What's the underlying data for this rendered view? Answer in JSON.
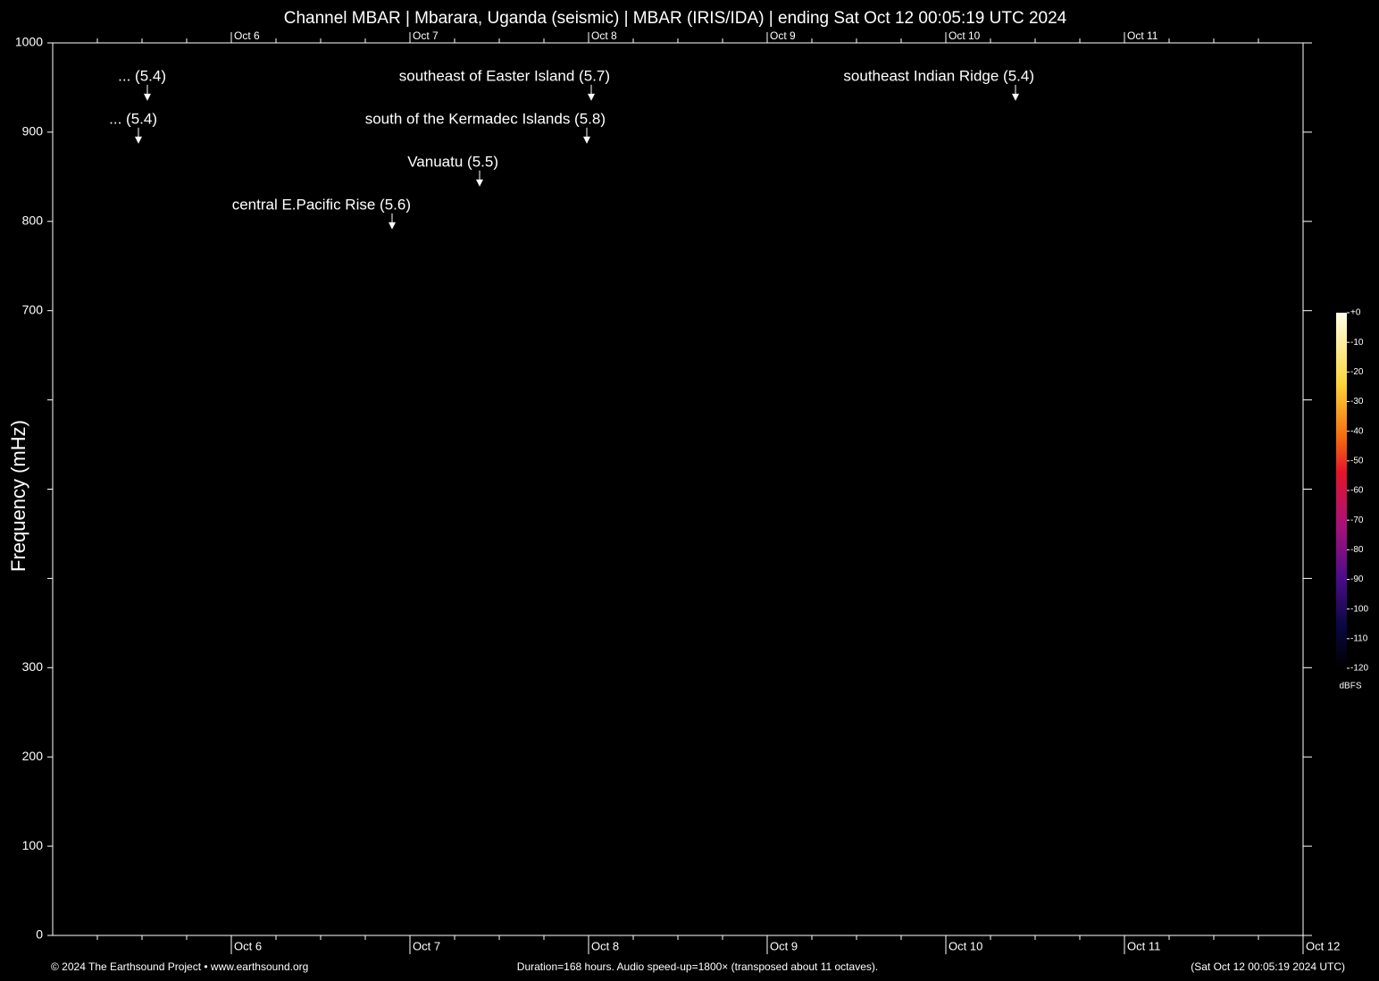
{
  "chart_data": {
    "type": "spectrogram",
    "title": "Channel MBAR | Mbarara, Uganda (seismic) | MBAR (IRIS/IDA) | ending Sat Oct 12 00:05:19 UTC 2024",
    "y_label": "Frequency (mHz)",
    "ylim": [
      0,
      1000
    ],
    "yticks": [
      0,
      100,
      200,
      300,
      700,
      800,
      900,
      1000
    ],
    "yticks_unlabeled": [
      400,
      500,
      600
    ],
    "xlim": [
      5,
      12
    ],
    "xticks": [
      {
        "value": 6,
        "label": "Oct 6"
      },
      {
        "value": 7,
        "label": "Oct 7"
      },
      {
        "value": 8,
        "label": "Oct 8"
      },
      {
        "value": 9,
        "label": "Oct 9"
      },
      {
        "value": 10,
        "label": "Oct 10"
      },
      {
        "value": 11,
        "label": "Oct 11"
      },
      {
        "value": 12,
        "label": "Oct 12"
      }
    ],
    "annotations": [
      {
        "label": "... (5.4)",
        "x": 5.53,
        "y": 935
      },
      {
        "label": "... (5.4)",
        "x": 5.48,
        "y": 887
      },
      {
        "label": "southeast of Easter Island (5.7)",
        "x": 8.015,
        "y": 935
      },
      {
        "label": "south of the Kermadec Islands (5.8)",
        "x": 7.99,
        "y": 887
      },
      {
        "label": "Vanuatu (5.5)",
        "x": 7.39,
        "y": 839
      },
      {
        "label": "central E.Pacific Rise (5.6)",
        "x": 6.9,
        "y": 791
      },
      {
        "label": "southeast Indian Ridge (5.4)",
        "x": 10.39,
        "y": 935
      }
    ],
    "colorbar": {
      "label": "dBFS",
      "lim": [
        -120,
        0
      ],
      "ticks": [
        {
          "value": 0,
          "label": "+0"
        },
        -10,
        -20,
        -30,
        -40,
        -50,
        -60,
        -70,
        -80,
        -90,
        -100,
        -110,
        -120
      ]
    },
    "footer": {
      "left": "© 2024 The Earthsound Project • www.earthsound.org",
      "center": "Duration=168 hours. Audio speed-up=1800× (transposed about 11 octaves).",
      "right": "(Sat Oct 12 00:05:19 2024 UTC)"
    }
  }
}
